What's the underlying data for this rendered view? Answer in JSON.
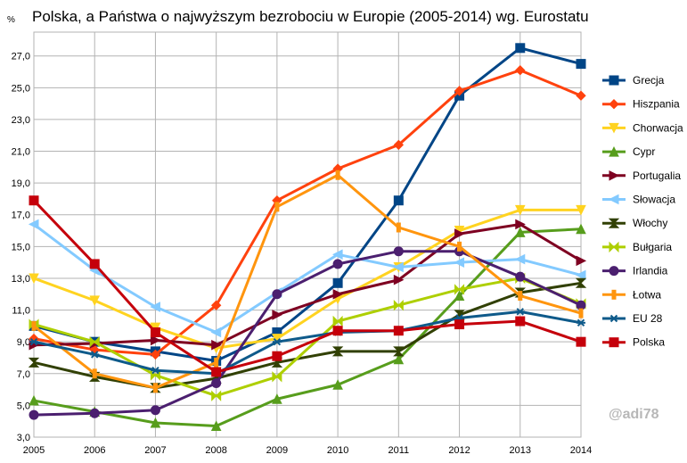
{
  "chart_data": {
    "type": "line",
    "title": "Polska, a Państwa o najwyższym bezrobociu w Europie (2005-2014) wg. Eurostatu",
    "ylabel": "%",
    "xlabel": "",
    "x": [
      "2005",
      "2006",
      "2007",
      "2008",
      "2009",
      "2010",
      "2011",
      "2012",
      "2013",
      "2014"
    ],
    "ylim": [
      3.0,
      28.5
    ],
    "yticks": [
      "3,0",
      "5,0",
      "7,0",
      "9,0",
      "11,0",
      "13,0",
      "15,0",
      "17,0",
      "19,0",
      "21,0",
      "23,0",
      "25,0",
      "27,0"
    ],
    "ytick_values": [
      3,
      5,
      7,
      9,
      11,
      13,
      15,
      17,
      19,
      21,
      23,
      25,
      27
    ],
    "grid": true,
    "legend_position": "right",
    "series": [
      {
        "name": "Grecja",
        "color": "#004586",
        "marker": "square",
        "values": [
          10.0,
          9.0,
          8.4,
          7.8,
          9.6,
          12.7,
          17.9,
          24.5,
          27.5,
          26.5
        ]
      },
      {
        "name": "Hiszpania",
        "color": "#ff420e",
        "marker": "diamond",
        "values": [
          9.2,
          8.5,
          8.2,
          11.3,
          17.9,
          19.9,
          21.4,
          24.8,
          26.1,
          24.5
        ]
      },
      {
        "name": "Chorwacja",
        "color": "#ffd320",
        "marker": "triangle-down",
        "values": [
          13.0,
          11.6,
          9.9,
          8.6,
          9.2,
          11.7,
          13.7,
          16.0,
          17.3,
          17.3
        ]
      },
      {
        "name": "Cypr",
        "color": "#579d1c",
        "marker": "triangle-up",
        "values": [
          5.3,
          4.6,
          3.9,
          3.7,
          5.4,
          6.3,
          7.9,
          11.9,
          15.9,
          16.1
        ]
      },
      {
        "name": "Portugalia",
        "color": "#7e0021",
        "marker": "arrow-right",
        "values": [
          8.8,
          8.9,
          9.1,
          8.8,
          10.7,
          12.0,
          12.9,
          15.8,
          16.4,
          14.1
        ]
      },
      {
        "name": "Słowacja",
        "color": "#83caff",
        "marker": "arrow-left",
        "values": [
          16.4,
          13.5,
          11.2,
          9.6,
          12.1,
          14.5,
          13.7,
          14.0,
          14.2,
          13.2
        ]
      },
      {
        "name": "Włochy",
        "color": "#314004",
        "marker": "hourglass",
        "values": [
          7.7,
          6.8,
          6.1,
          6.7,
          7.7,
          8.4,
          8.4,
          10.7,
          12.1,
          12.7
        ]
      },
      {
        "name": "Bułgaria",
        "color": "#aecf00",
        "marker": "bowtie",
        "values": [
          10.1,
          9.0,
          6.9,
          5.6,
          6.8,
          10.3,
          11.3,
          12.3,
          13.0,
          11.4
        ]
      },
      {
        "name": "Irlandia",
        "color": "#4b1f6f",
        "marker": "circle",
        "values": [
          4.4,
          4.5,
          4.7,
          6.4,
          12.0,
          13.9,
          14.7,
          14.7,
          13.1,
          11.3
        ]
      },
      {
        "name": "Łotwa",
        "color": "#ff950e",
        "marker": "vbar",
        "values": [
          10.0,
          7.0,
          6.1,
          7.7,
          17.5,
          19.5,
          16.2,
          15.0,
          11.9,
          10.8
        ]
      },
      {
        "name": "EU 28",
        "color": "#0e5a8a",
        "marker": "star",
        "values": [
          9.0,
          8.2,
          7.2,
          7.0,
          9.0,
          9.6,
          9.7,
          10.5,
          10.9,
          10.2
        ]
      },
      {
        "name": "Polska",
        "color": "#c5000b",
        "marker": "square",
        "values": [
          17.9,
          13.9,
          9.6,
          7.1,
          8.1,
          9.7,
          9.7,
          10.1,
          10.3,
          9.0
        ]
      }
    ]
  },
  "watermark": "@adi78"
}
